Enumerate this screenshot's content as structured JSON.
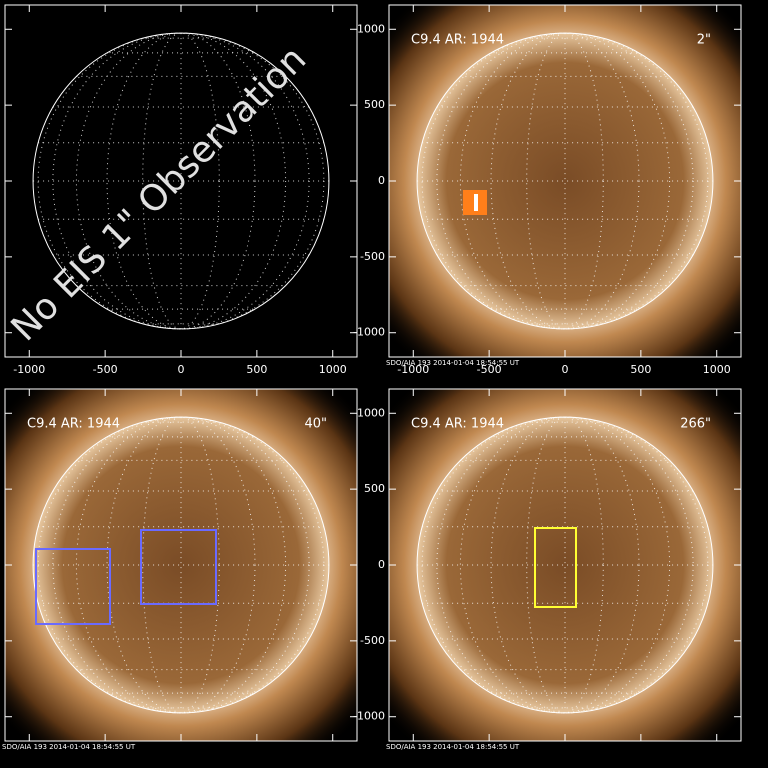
{
  "panels": [
    {
      "annotation": "No EIS 1\" Observation",
      "xlim": [
        -1160,
        1160
      ],
      "ylim": [
        -1160,
        1160
      ],
      "xticks": [
        -1000,
        -500,
        0,
        500,
        1000
      ],
      "yticks": [
        -1000,
        -500,
        0,
        500,
        1000
      ],
      "show_x_labels": true,
      "show_y_labels": false
    },
    {
      "title": "C9.4 AR: 1944",
      "scale": "2\"",
      "color": "#ff7f1a",
      "footer": "SDO/AIA 193   2014-01-04 18:54:55 UT",
      "xlim": [
        -1160,
        1160
      ],
      "ylim": [
        -1160,
        1160
      ],
      "xticks": [
        -1000,
        -500,
        0,
        500,
        1000
      ],
      "yticks": [
        -1000,
        -500,
        0,
        500,
        1000
      ],
      "show_x_labels": true,
      "show_y_labels": true
    },
    {
      "title": "C9.4 AR: 1944",
      "scale": "40\"",
      "color": "#6a6aff",
      "footer": "SDO/AIA 193   2014-01-04 18:54:55 UT",
      "xlim": [
        -1160,
        1160
      ],
      "ylim": [
        -1160,
        1160
      ],
      "xticks": [
        -1000,
        -500,
        0,
        500,
        1000
      ],
      "yticks": [
        -1000,
        -500,
        0,
        500,
        1000
      ],
      "show_x_labels": false,
      "show_y_labels": false
    },
    {
      "title": "C9.4 AR: 1944",
      "scale": "266\"",
      "color": "#ffff33",
      "footer": "SDO/AIA 193   2014-01-04 18:54:55 UT",
      "xlim": [
        -1160,
        1160
      ],
      "ylim": [
        -1160,
        1160
      ],
      "xticks": [
        -1000,
        -500,
        0,
        500,
        1000
      ],
      "yticks": [
        -1000,
        -500,
        0,
        500,
        1000
      ],
      "show_x_labels": false,
      "show_y_labels": true
    }
  ]
}
